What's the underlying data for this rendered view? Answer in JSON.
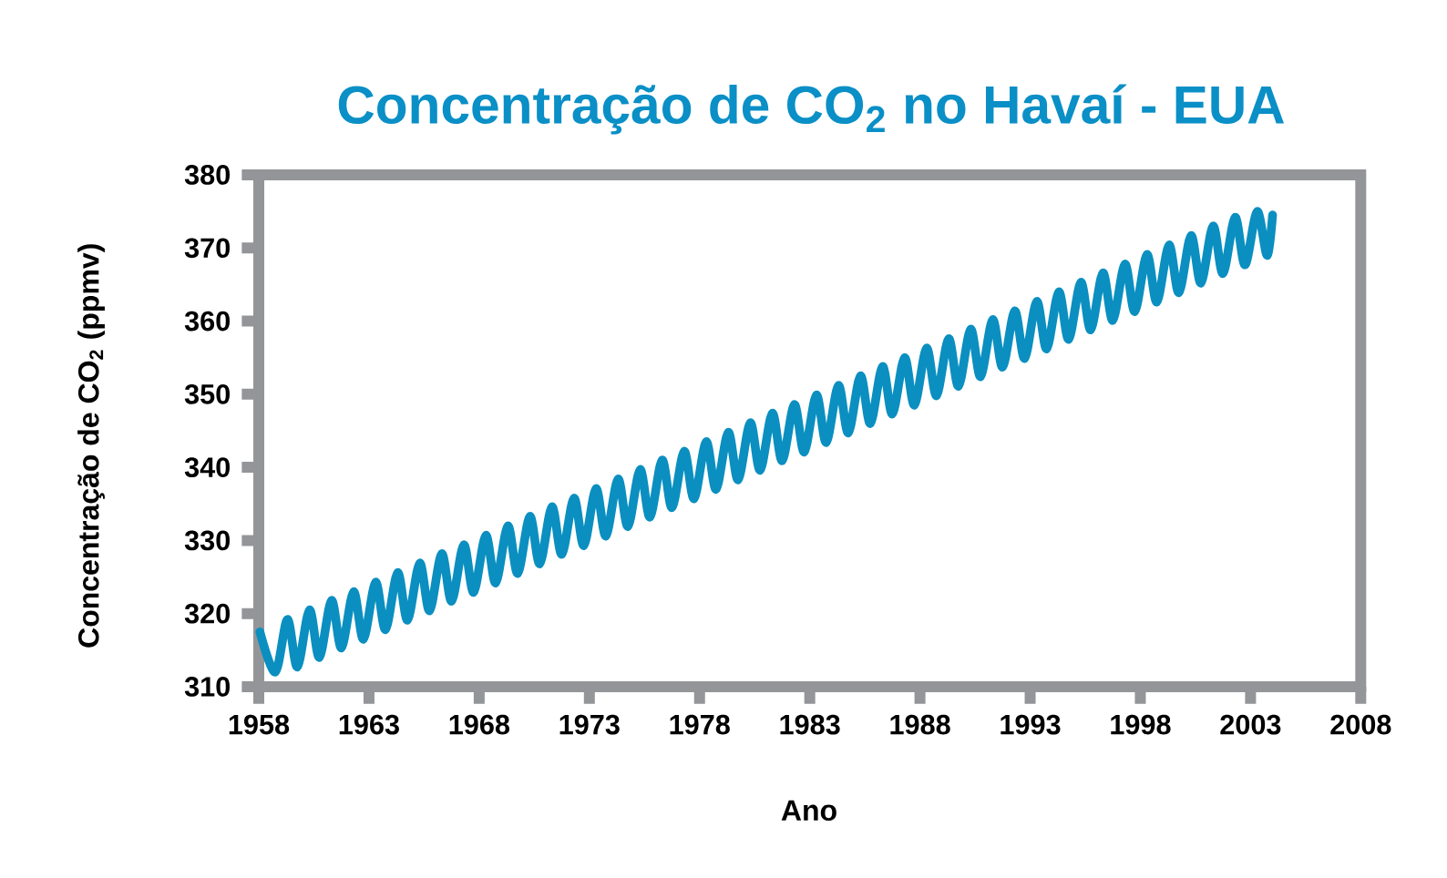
{
  "chart_data": {
    "type": "line",
    "title": "Concentração de CO$_{2}$ no Havaí - EUA",
    "xlabel": "Ano",
    "ylabel": "Concentração de CO$_{2}$ (ppmv)",
    "xlim": [
      1958,
      2008
    ],
    "ylim": [
      310,
      380
    ],
    "xticks": [
      1958,
      1963,
      1968,
      1973,
      1978,
      1983,
      1988,
      1993,
      1998,
      2003,
      2008
    ],
    "yticks": [
      310,
      320,
      330,
      340,
      350,
      360,
      370,
      380
    ],
    "grid": false,
    "series": [
      {
        "color": "#0a8fc0",
        "x": [
          1958.05,
          1958.75,
          1959.3,
          1959.75,
          1960.3,
          1960.75,
          1961.3,
          1961.75,
          1962.3,
          1962.75,
          1963.3,
          1963.75,
          1964.3,
          1964.75,
          1965.3,
          1965.75,
          1966.3,
          1966.75,
          1967.3,
          1967.75,
          1968.3,
          1968.75,
          1969.3,
          1969.75,
          1970.3,
          1970.75,
          1971.3,
          1971.75,
          1972.3,
          1972.75,
          1973.3,
          1973.75,
          1974.3,
          1974.75,
          1975.3,
          1975.75,
          1976.3,
          1976.75,
          1977.3,
          1977.75,
          1978.3,
          1978.75,
          1979.3,
          1979.75,
          1980.3,
          1980.75,
          1981.3,
          1981.75,
          1982.3,
          1982.75,
          1983.3,
          1983.75,
          1984.3,
          1984.75,
          1985.3,
          1985.75,
          1986.3,
          1986.75,
          1987.3,
          1987.75,
          1988.3,
          1988.75,
          1989.3,
          1989.75,
          1990.3,
          1990.75,
          1991.3,
          1991.75,
          1992.3,
          1992.75,
          1993.3,
          1993.75,
          1994.3,
          1994.75,
          1995.3,
          1995.75,
          1996.3,
          1996.75,
          1997.3,
          1997.75,
          1998.3,
          1998.75,
          1999.3,
          1999.75,
          2000.3,
          2000.75,
          2001.3,
          2001.75,
          2002.3,
          2002.75,
          2003.3,
          2003.75,
          2004.0
        ],
        "values": [
          317.5,
          312.0,
          319.2,
          312.7,
          320.5,
          314.0,
          321.8,
          315.3,
          323.0,
          316.5,
          324.3,
          317.8,
          325.6,
          319.1,
          326.9,
          320.4,
          328.2,
          321.7,
          329.4,
          322.9,
          330.7,
          324.2,
          332.0,
          325.5,
          333.3,
          326.8,
          334.6,
          328.1,
          335.8,
          329.3,
          337.1,
          330.6,
          338.4,
          331.9,
          339.7,
          333.2,
          341.0,
          334.5,
          342.2,
          335.7,
          343.5,
          337.0,
          344.8,
          338.3,
          346.1,
          339.6,
          347.4,
          340.9,
          348.6,
          342.1,
          349.9,
          343.4,
          351.2,
          344.7,
          352.5,
          346.0,
          353.8,
          347.3,
          355.0,
          348.5,
          356.3,
          349.8,
          357.6,
          351.1,
          358.9,
          352.4,
          360.2,
          353.7,
          361.4,
          354.9,
          362.7,
          356.2,
          364.0,
          357.5,
          365.3,
          358.8,
          366.6,
          360.1,
          367.8,
          361.3,
          369.1,
          362.6,
          370.4,
          363.9,
          371.7,
          365.2,
          373.0,
          366.5,
          374.2,
          367.7,
          375.0,
          369.0,
          374.5
        ]
      }
    ]
  }
}
